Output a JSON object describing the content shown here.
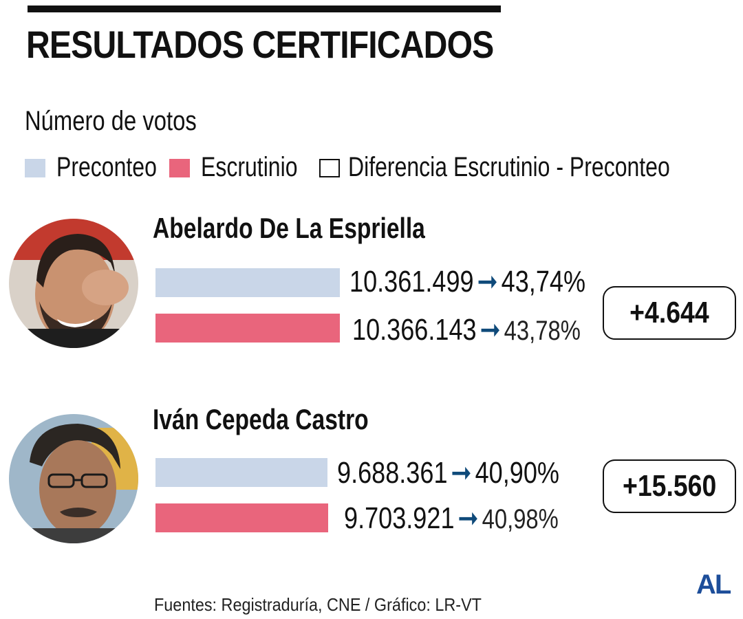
{
  "title": "RESULTADOS CERTIFICADOS",
  "subtitle": "Número de votos",
  "legend": {
    "items": [
      {
        "label": "Preconteo",
        "color": "#c9d6e8"
      },
      {
        "label": "Escrutinio",
        "color": "#e9657c"
      },
      {
        "label": "Diferencia Escrutinio - Preconteo",
        "color": "#ffffff"
      }
    ]
  },
  "colors": {
    "preconteo": "#c9d6e8",
    "escrutinio": "#e9657c",
    "arrow": "#0f4a7a",
    "logo": "#1d4e9a"
  },
  "arrow_symbol": "➞",
  "candidates": [
    {
      "name": "Abelardo De La Espriella",
      "preconteo": {
        "votes": "10.361.499",
        "pct": "43,74%"
      },
      "escrutinio": {
        "votes": "10.366.143",
        "pct": "43,78%"
      },
      "difference": "+4.644"
    },
    {
      "name": "Iván Cepeda Castro",
      "preconteo": {
        "votes": "9.688.361",
        "pct": "40,90%"
      },
      "escrutinio": {
        "votes": "9.703.921",
        "pct": "40,98%"
      },
      "difference": "+15.560"
    }
  ],
  "chart_data": {
    "type": "bar",
    "title": "RESULTADOS CERTIFICADOS",
    "subtitle": "Número de votos",
    "categories": [
      "Abelardo De La Espriella",
      "Iván Cepeda Castro"
    ],
    "series": [
      {
        "name": "Preconteo",
        "values": [
          10361499,
          9688361
        ],
        "percent": [
          43.74,
          40.9
        ]
      },
      {
        "name": "Escrutinio",
        "values": [
          10366143,
          9703921
        ],
        "percent": [
          43.78,
          40.98
        ]
      },
      {
        "name": "Diferencia Escrutinio - Preconteo",
        "values": [
          4644,
          15560
        ]
      }
    ],
    "orientation": "horizontal",
    "legend_position": "top-left"
  },
  "logo": "AL",
  "source": "Fuentes: Registraduría, CNE / Gráfico: LR-VT"
}
